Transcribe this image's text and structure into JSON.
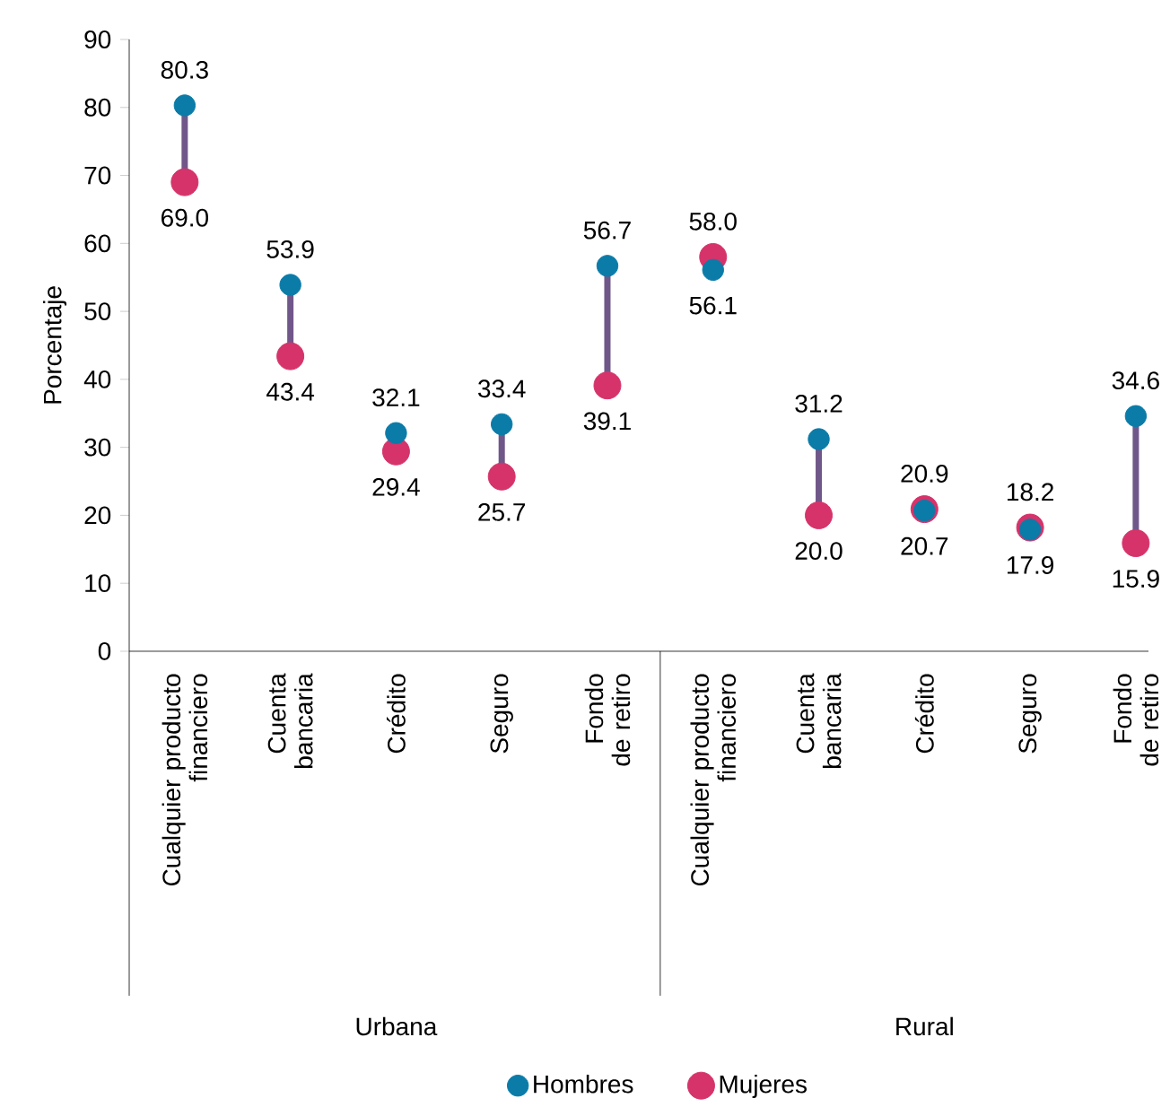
{
  "chart_data": {
    "type": "scatter",
    "ylabel": "Porcentaje",
    "categories": [
      "Cualquier producto financiero",
      "Cuenta bancaria",
      "Crédito",
      "Seguro",
      "Fondo de retiro",
      "Cualquier producto financiero",
      "Cuenta bancaria",
      "Crédito",
      "Seguro",
      "Fondo de retiro"
    ],
    "series": [
      {
        "name": "Hombres",
        "color": "#0b7ba8",
        "values": [
          80.3,
          53.9,
          32.1,
          33.4,
          56.7,
          56.1,
          31.2,
          20.7,
          17.9,
          34.6
        ],
        "value_labels": [
          "80.3",
          "53.9",
          "32.1",
          "33.4",
          "56.7",
          "56.1",
          "31.2",
          "20.7",
          "17.9",
          "34.6"
        ]
      },
      {
        "name": "Mujeres",
        "color": "#d5336a",
        "values": [
          69.0,
          43.4,
          29.4,
          25.7,
          39.1,
          58.0,
          20.0,
          20.9,
          18.2,
          15.9
        ],
        "value_labels": [
          "69.0",
          "43.4",
          "29.4",
          "25.7",
          "39.1",
          "58.0",
          "20.0",
          "20.9",
          "18.2",
          "15.9"
        ]
      }
    ],
    "ylim": [
      0,
      90
    ],
    "yticks": [
      0,
      10,
      20,
      30,
      40,
      50,
      60,
      70,
      80,
      90
    ],
    "annotations": [
      "Urbana",
      "Rural"
    ],
    "marker": "circle",
    "legend": "bottom"
  }
}
